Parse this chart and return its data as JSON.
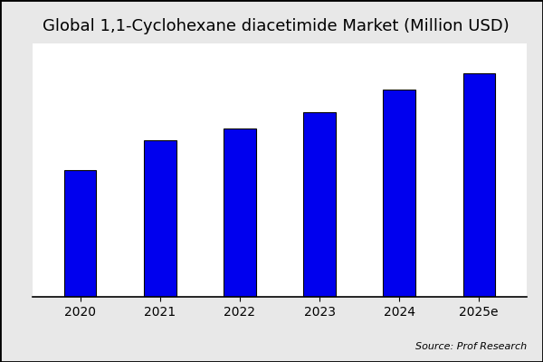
{
  "title": "Global 1,1-Cyclohexane diacetimide Market (Million USD)",
  "categories": [
    "2020",
    "2021",
    "2022",
    "2023",
    "2024",
    "2025e"
  ],
  "values": [
    55,
    68,
    73,
    80,
    90,
    97
  ],
  "bar_color": "#0000EE",
  "bar_edgecolor": "#000000",
  "background_color": "#e8e8e8",
  "plot_bg_color": "#ffffff",
  "source_text": "Source: Prof Research",
  "title_fontsize": 13,
  "tick_fontsize": 10,
  "source_fontsize": 8,
  "ylim": [
    0,
    110
  ],
  "bar_width": 0.4
}
